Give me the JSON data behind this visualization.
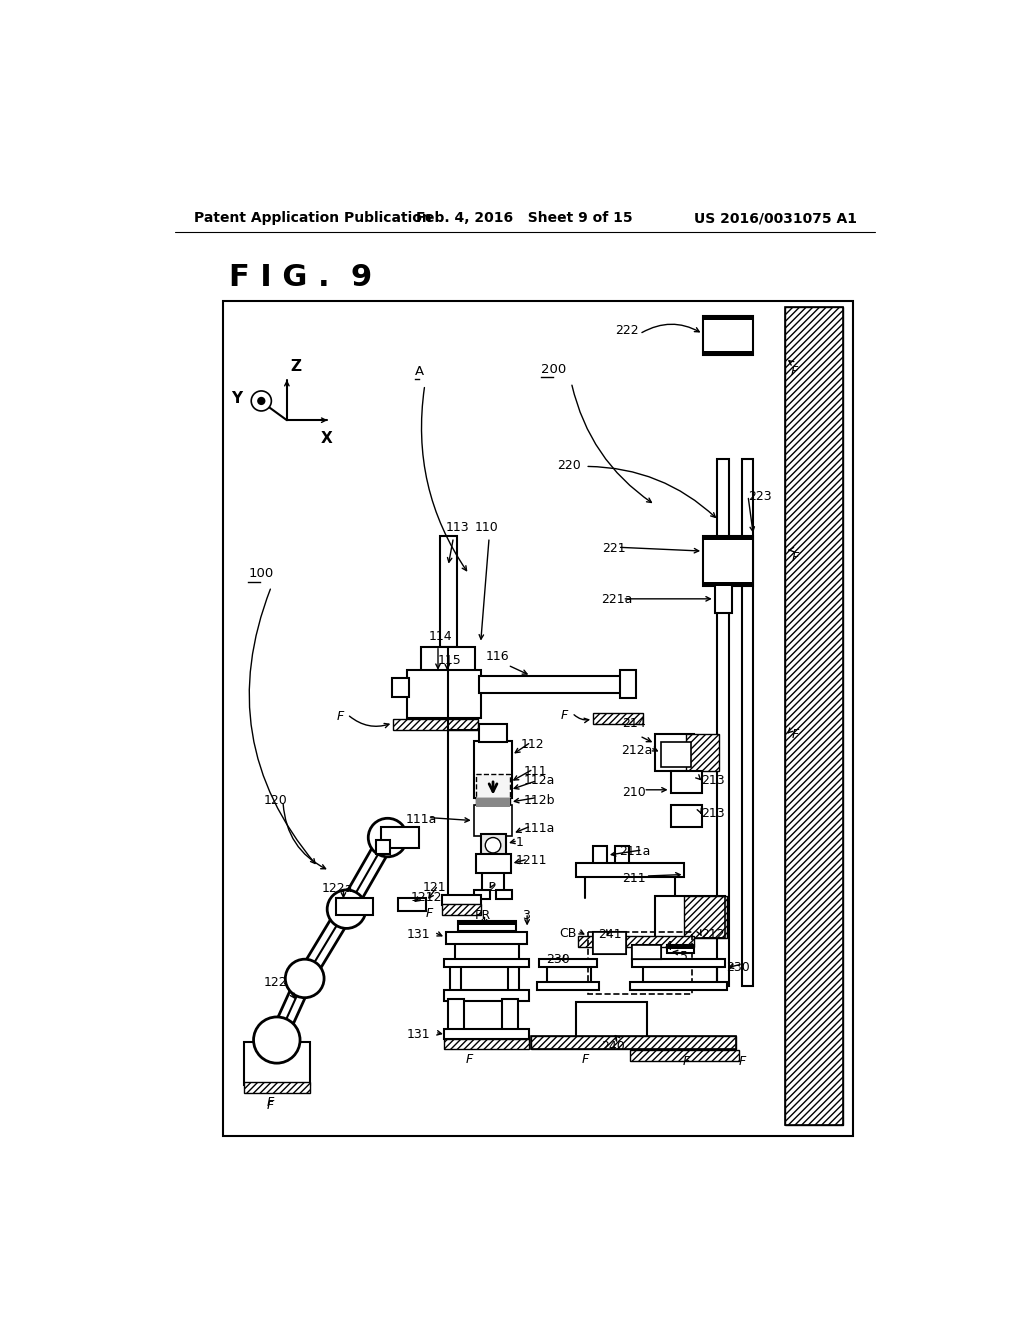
{
  "bg": "#ffffff",
  "header_left": "Patent Application Publication",
  "header_center": "Feb. 4, 2016   Sheet 9 of 15",
  "header_right": "US 2016/0031075 A1",
  "fig_title": "F I G .  9"
}
